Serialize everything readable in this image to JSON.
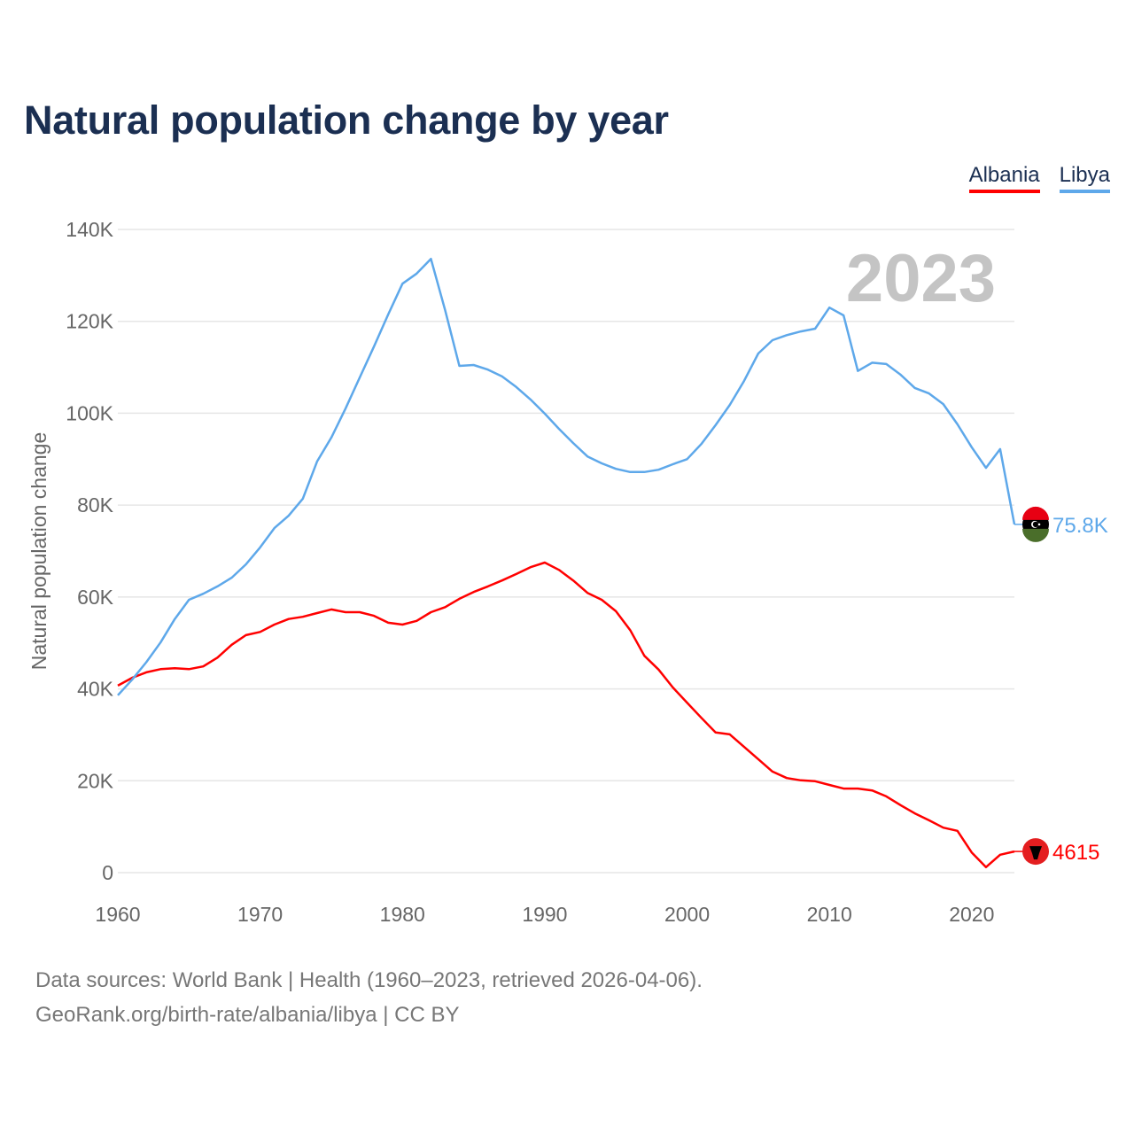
{
  "title": "Natural population change by year",
  "legend": [
    {
      "label": "Albania",
      "color": "#ff0000"
    },
    {
      "label": "Libya",
      "color": "#5ea8ea"
    }
  ],
  "footer": {
    "line1": "Data sources: World Bank | Health (1960–2023, retrieved 2026-04-06).",
    "line2": "GeoRank.org/birth-rate/albania/libya | CC BY"
  },
  "chart_data": {
    "type": "line",
    "title": "Natural population change by year",
    "xlabel": "",
    "ylabel": "Natural population change",
    "year_label": "2023",
    "xlim": [
      1960,
      2023
    ],
    "ylim": [
      0,
      140000
    ],
    "x_ticks": [
      1960,
      1970,
      1980,
      1990,
      2000,
      2010,
      2020
    ],
    "y_ticks": [
      0,
      20000,
      40000,
      60000,
      80000,
      100000,
      120000,
      140000
    ],
    "y_tick_labels": [
      "0",
      "20K",
      "40K",
      "60K",
      "80K",
      "100K",
      "120K",
      "140K"
    ],
    "grid": true,
    "legend_position": "top-right",
    "x_start": 1960,
    "series": [
      {
        "name": "Albania",
        "color": "#ff0000",
        "end_label": "4615",
        "values": [
          40700,
          42400,
          43600,
          44300,
          44500,
          44300,
          44900,
          46800,
          49600,
          51700,
          52400,
          54000,
          55200,
          55700,
          56500,
          57300,
          56700,
          56700,
          55900,
          54400,
          54000,
          54800,
          56700,
          57800,
          59600,
          61100,
          62300,
          63600,
          65000,
          66500,
          67500,
          65900,
          63600,
          60900,
          59400,
          56900,
          52800,
          47200,
          44200,
          40300,
          37000,
          33700,
          30500,
          30100,
          27400,
          24700,
          22000,
          20600,
          20100,
          19900,
          19100,
          18300,
          18300,
          17900,
          16600,
          14700,
          12900,
          11400,
          9800,
          9100,
          4400,
          1200,
          3900,
          4615
        ]
      },
      {
        "name": "Libya",
        "color": "#5ea8ea",
        "end_label": "75.8K",
        "values": [
          38600,
          42000,
          45800,
          50100,
          55200,
          59400,
          60700,
          62300,
          64200,
          67100,
          70800,
          75000,
          77700,
          81400,
          89500,
          94700,
          101000,
          107800,
          114500,
          121500,
          128200,
          130400,
          133600,
          122400,
          110300,
          110500,
          109500,
          108000,
          105700,
          103000,
          99900,
          96600,
          93500,
          90600,
          89100,
          87900,
          87200,
          87200,
          87700,
          88900,
          90000,
          93300,
          97400,
          101800,
          107000,
          113000,
          115900,
          117000,
          117800,
          118400,
          123000,
          121300,
          109200,
          111000,
          110700,
          108400,
          105500,
          104300,
          102000,
          97600,
          92600,
          88100,
          92200,
          75800
        ]
      }
    ]
  }
}
